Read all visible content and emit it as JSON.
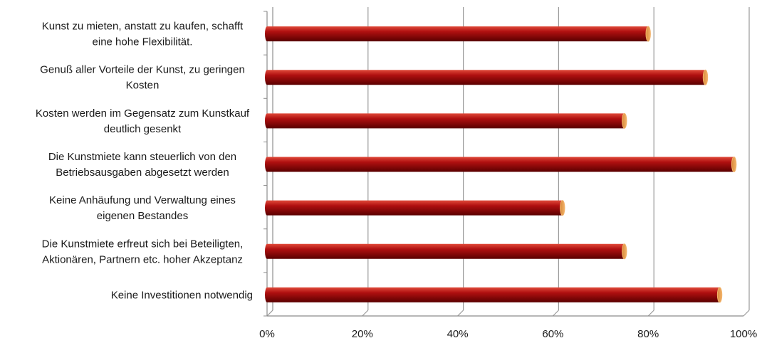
{
  "chart_data": {
    "type": "bar",
    "orientation": "horizontal",
    "style": "3d-cylinder",
    "categories": [
      [
        "Kunst zu mieten, anstatt zu kaufen, schafft",
        "eine hohe Flexibilität."
      ],
      [
        "Genuß aller Vorteile der Kunst, zu geringen",
        "Kosten"
      ],
      [
        "Kosten werden im Gegensatz zum Kunstkauf",
        "deutlich gesenkt"
      ],
      [
        "Die Kunstmiete kann steuerlich von den",
        "Betriebsausgaben abgesetzt werden"
      ],
      [
        "Keine Anhäufung und Verwaltung eines",
        "eigenen Bestandes"
      ],
      [
        "Die Kunstmiete erfreut sich bei Beteiligten,",
        "Aktionären, Partnern etc. hoher Akzeptanz"
      ],
      [
        "Keine Investitionen notwendig"
      ]
    ],
    "values": [
      0.8,
      0.92,
      0.75,
      0.98,
      0.62,
      0.75,
      0.95
    ],
    "xlim": [
      0,
      1
    ],
    "xticks": [
      "0%",
      "20%",
      "40%",
      "60%",
      "80%",
      "100%"
    ],
    "grid": true,
    "legend": "none",
    "colors": {
      "bar_main": "#b01010",
      "bar_dark": "#5a0000",
      "bar_highlight": "#e04a3a",
      "bar_cap": "#f2b36a",
      "grid": "#9a9a9a",
      "axis": "#8c8c8c"
    }
  }
}
